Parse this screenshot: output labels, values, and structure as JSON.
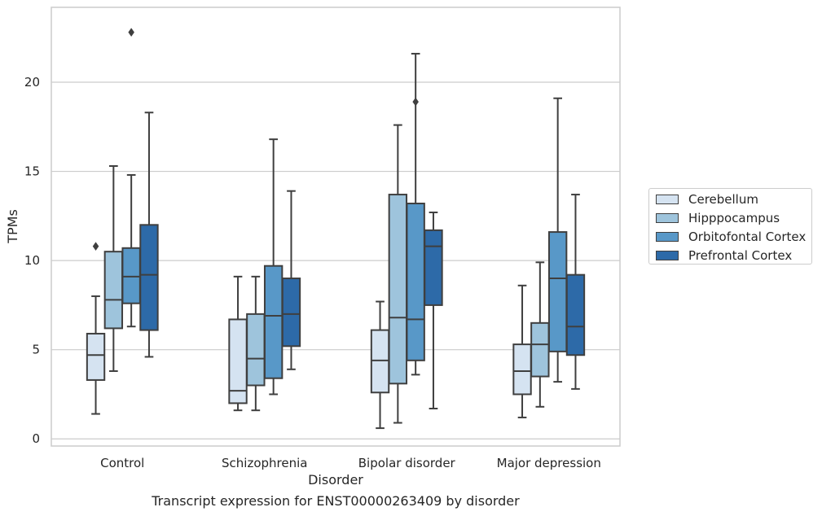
{
  "caption": "Transcript expression for ENST00000263409 by disorder",
  "chart_data": {
    "type": "box",
    "xlabel": "Disorder",
    "ylabel": "TPMs",
    "ylim": [
      -0.4,
      24.2
    ],
    "yticks": [
      0,
      5,
      10,
      15,
      20
    ],
    "grid": "horizontal",
    "legend_position": "right-center",
    "categories": [
      "Control",
      "Schizophrenia",
      "Bipolar disorder",
      "Major depression"
    ],
    "series": [
      {
        "name": "Cerebellum",
        "color": "#d5e3f1",
        "boxes": [
          {
            "whislo": 1.4,
            "q1": 3.3,
            "med": 4.7,
            "q3": 5.9,
            "whishi": 8.0,
            "fliers": [
              10.8
            ]
          },
          {
            "whislo": 1.6,
            "q1": 2.0,
            "med": 2.7,
            "q3": 6.7,
            "whishi": 9.1,
            "fliers": []
          },
          {
            "whislo": 0.6,
            "q1": 2.6,
            "med": 4.4,
            "q3": 6.1,
            "whishi": 7.7,
            "fliers": []
          },
          {
            "whislo": 1.2,
            "q1": 2.5,
            "med": 3.8,
            "q3": 5.3,
            "whishi": 8.6,
            "fliers": []
          }
        ]
      },
      {
        "name": "Hipppocampus",
        "color": "#9ec4dc",
        "boxes": [
          {
            "whislo": 3.8,
            "q1": 6.2,
            "med": 7.8,
            "q3": 10.5,
            "whishi": 15.3,
            "fliers": []
          },
          {
            "whislo": 1.6,
            "q1": 3.0,
            "med": 4.5,
            "q3": 7.0,
            "whishi": 9.1,
            "fliers": []
          },
          {
            "whislo": 0.9,
            "q1": 3.1,
            "med": 6.8,
            "q3": 13.7,
            "whishi": 17.6,
            "fliers": []
          },
          {
            "whislo": 1.8,
            "q1": 3.5,
            "med": 5.3,
            "q3": 6.5,
            "whishi": 9.9,
            "fliers": []
          }
        ]
      },
      {
        "name": "Orbitofontal Cortex",
        "color": "#5898c8",
        "boxes": [
          {
            "whislo": 6.3,
            "q1": 7.6,
            "med": 9.1,
            "q3": 10.7,
            "whishi": 14.8,
            "fliers": [
              22.8
            ]
          },
          {
            "whislo": 2.5,
            "q1": 3.4,
            "med": 6.9,
            "q3": 9.7,
            "whishi": 16.8,
            "fliers": []
          },
          {
            "whislo": 3.6,
            "q1": 4.4,
            "med": 6.7,
            "q3": 13.2,
            "whishi": 21.6,
            "fliers": [
              18.9
            ]
          },
          {
            "whislo": 3.2,
            "q1": 4.9,
            "med": 9.0,
            "q3": 11.6,
            "whishi": 19.1,
            "fliers": []
          }
        ]
      },
      {
        "name": "Prefrontal Cortex",
        "color": "#2d6aa8",
        "boxes": [
          {
            "whislo": 4.6,
            "q1": 6.1,
            "med": 9.2,
            "q3": 12.0,
            "whishi": 18.3,
            "fliers": []
          },
          {
            "whislo": 3.9,
            "q1": 5.2,
            "med": 7.0,
            "q3": 9.0,
            "whishi": 13.9,
            "fliers": []
          },
          {
            "whislo": 1.7,
            "q1": 7.5,
            "med": 10.8,
            "q3": 11.7,
            "whishi": 12.7,
            "fliers": []
          },
          {
            "whislo": 2.8,
            "q1": 4.7,
            "med": 6.3,
            "q3": 9.2,
            "whishi": 13.7,
            "fliers": []
          }
        ]
      }
    ]
  }
}
